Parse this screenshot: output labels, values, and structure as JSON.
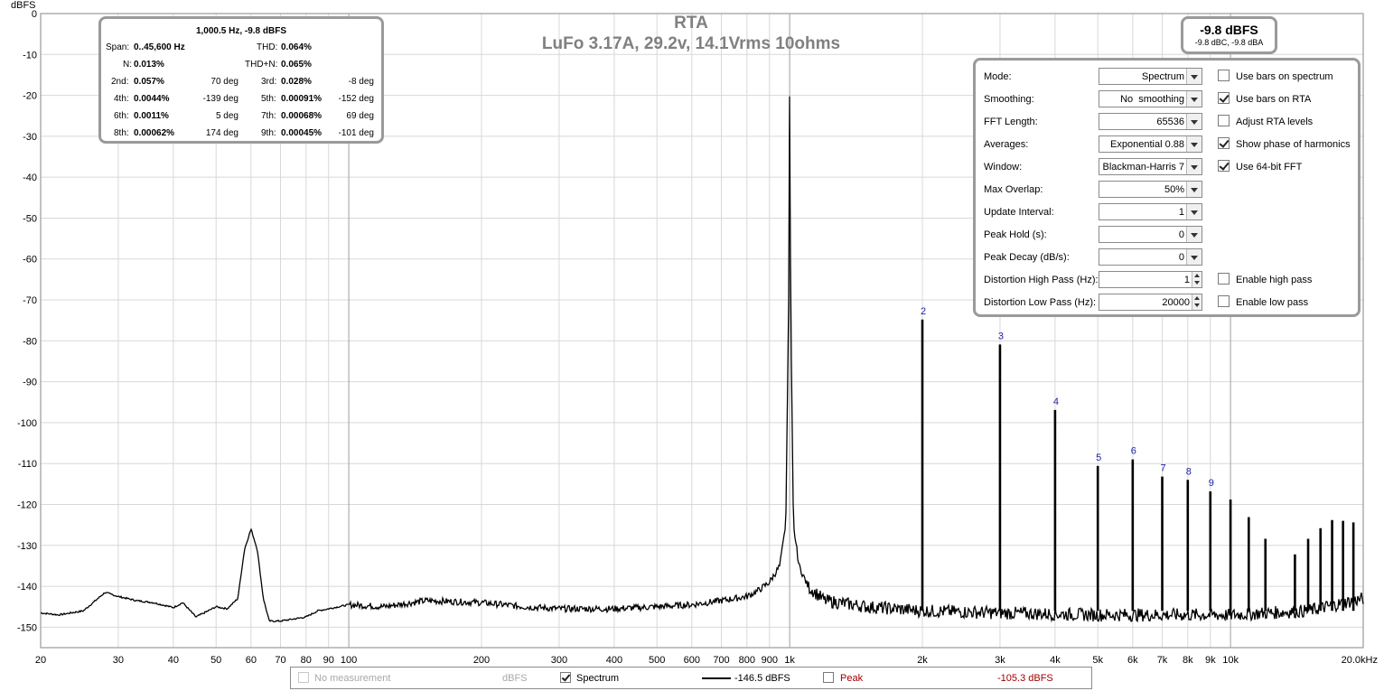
{
  "y_axis": {
    "unit": "dBFS",
    "ticks": [
      "0",
      "-10",
      "-20",
      "-30",
      "-40",
      "-50",
      "-60",
      "-70",
      "-80",
      "-90",
      "-100",
      "-110",
      "-120",
      "-130",
      "-140",
      "-150"
    ]
  },
  "x_axis": {
    "ticks": [
      "20",
      "30",
      "40",
      "50",
      "60",
      "70",
      "80",
      "90",
      "100",
      "200",
      "300",
      "400",
      "500",
      "600",
      "700",
      "800",
      "900",
      "1k",
      "2k",
      "3k",
      "4k",
      "5k",
      "6k",
      "7k",
      "8k",
      "9k",
      "10k",
      "20.0kHz"
    ]
  },
  "title": {
    "line1": "RTA",
    "line2": "LuFo 3.17A, 29.2v, 14.1Vrms 10ohms"
  },
  "stats": {
    "header": "1,000.5 Hz, -9.8 dBFS",
    "span_label": "Span:",
    "span_value": "0..45,600 Hz",
    "thd_label": "THD:",
    "thd_value": "0.064%",
    "n_label": "N:",
    "n_value": "0.013%",
    "thdn_label": "THD+N:",
    "thdn_value": "0.065%",
    "harmonics": [
      {
        "label": "2nd:",
        "value": "0.057%",
        "phase": "70 deg"
      },
      {
        "label": "3rd:",
        "value": "0.028%",
        "phase": "-8 deg"
      },
      {
        "label": "4th:",
        "value": "0.0044%",
        "phase": "-139 deg"
      },
      {
        "label": "5th:",
        "value": "0.00091%",
        "phase": "-152 deg"
      },
      {
        "label": "6th:",
        "value": "0.0011%",
        "phase": "5 deg"
      },
      {
        "label": "7th:",
        "value": "0.00068%",
        "phase": "69 deg"
      },
      {
        "label": "8th:",
        "value": "0.00062%",
        "phase": "174 deg"
      },
      {
        "label": "9th:",
        "value": "0.00045%",
        "phase": "-101 deg"
      }
    ]
  },
  "level": {
    "main": "-9.8 dBFS",
    "sub": "-9.8 dBC, -9.8 dBA"
  },
  "settings": {
    "rows": [
      {
        "label": "Mode:",
        "value": "Spectrum",
        "control": "dropdown"
      },
      {
        "label": "Smoothing:",
        "value": "No  smoothing",
        "control": "dropdown"
      },
      {
        "label": "FFT Length:",
        "value": "65536",
        "control": "dropdown"
      },
      {
        "label": "Averages:",
        "value": "Exponential 0.88",
        "control": "dropdown"
      },
      {
        "label": "Window:",
        "value": "Blackman-Harris 7",
        "control": "dropdown"
      },
      {
        "label": "Max Overlap:",
        "value": "50%",
        "control": "dropdown"
      },
      {
        "label": "Update Interval:",
        "value": "1",
        "control": "dropdown"
      },
      {
        "label": "Peak Hold (s):",
        "value": "0",
        "control": "dropdown"
      },
      {
        "label": "Peak Decay (dB/s):",
        "value": "0",
        "control": "dropdown"
      },
      {
        "label": "Distortion High Pass (Hz):",
        "value": "1",
        "control": "spinner"
      },
      {
        "label": "Distortion Low Pass (Hz):",
        "value": "20000",
        "control": "spinner"
      }
    ],
    "checkboxes": [
      {
        "label": "Use bars on spectrum",
        "checked": false
      },
      {
        "label": "Use bars on RTA",
        "checked": true
      },
      {
        "label": "Adjust RTA levels",
        "checked": false
      },
      {
        "label": "Show phase of harmonics",
        "checked": true
      },
      {
        "label": "Use 64-bit FFT",
        "checked": true
      }
    ],
    "checkboxes_lower": [
      {
        "label": "Enable high pass",
        "checked": false
      },
      {
        "label": "Enable low pass",
        "checked": false
      }
    ]
  },
  "legend": {
    "no_measurement": {
      "label": "No measurement",
      "unit": "dBFS",
      "checked": false
    },
    "spectrum": {
      "label": "Spectrum",
      "value": "-146.5 dBFS",
      "checked": true
    },
    "peak": {
      "label": "Peak",
      "value": "-105.3 dBFS",
      "checked": false,
      "color": "#a00000"
    }
  },
  "colors": {
    "harmonic_label": "#2222aa",
    "trace": "#000000",
    "grid": "#d8d8d8",
    "grid_major": "#a0a0a0"
  },
  "chart_data": {
    "type": "line",
    "xlabel": "",
    "ylabel": "dBFS",
    "xscale": "log",
    "xlim": [
      20,
      20000
    ],
    "ylim": [
      -155,
      0
    ],
    "grid": true,
    "series": [
      {
        "name": "Spectrum",
        "points": [
          [
            20,
            -146.5
          ],
          [
            22,
            -147
          ],
          [
            25,
            -146
          ],
          [
            28,
            -141.5
          ],
          [
            30,
            -142.5
          ],
          [
            33,
            -143.5
          ],
          [
            36,
            -144
          ],
          [
            40,
            -145.2
          ],
          [
            42,
            -144
          ],
          [
            45,
            -147.5
          ],
          [
            48,
            -146
          ],
          [
            50,
            -145
          ],
          [
            53,
            -145.5
          ],
          [
            56,
            -143
          ],
          [
            58,
            -131
          ],
          [
            60,
            -126
          ],
          [
            62,
            -131
          ],
          [
            64,
            -143
          ],
          [
            66,
            -148.5
          ],
          [
            70,
            -148.5
          ],
          [
            75,
            -148
          ],
          [
            80,
            -147.5
          ],
          [
            85,
            -146
          ],
          [
            90,
            -145.5
          ],
          [
            100,
            -144.5
          ],
          [
            120,
            -145
          ],
          [
            150,
            -143.5
          ],
          [
            200,
            -144
          ],
          [
            250,
            -145
          ],
          [
            300,
            -145.5
          ],
          [
            400,
            -145.5
          ],
          [
            500,
            -145
          ],
          [
            600,
            -144.5
          ],
          [
            700,
            -143.5
          ],
          [
            800,
            -142.5
          ],
          [
            850,
            -141
          ],
          [
            900,
            -139
          ],
          [
            950,
            -135
          ],
          [
            980,
            -125
          ],
          [
            995,
            -70
          ],
          [
            1000.5,
            -9.8
          ],
          [
            1005,
            -70
          ],
          [
            1020,
            -125
          ],
          [
            1050,
            -135
          ],
          [
            1100,
            -140
          ],
          [
            1200,
            -143.5
          ],
          [
            1500,
            -145
          ],
          [
            2000,
            -146
          ],
          [
            3000,
            -146.5
          ],
          [
            5000,
            -147
          ],
          [
            7000,
            -147
          ],
          [
            10000,
            -147
          ],
          [
            15000,
            -146
          ],
          [
            20000,
            -143
          ]
        ]
      }
    ],
    "harmonics": [
      {
        "n": 2,
        "freq": 2000,
        "db": -74.8
      },
      {
        "n": 3,
        "freq": 3000,
        "db": -80.9
      },
      {
        "n": 4,
        "freq": 4000,
        "db": -96.9
      },
      {
        "n": 5,
        "freq": 5000,
        "db": -110.6
      },
      {
        "n": 6,
        "freq": 6000,
        "db": -109.0
      },
      {
        "n": 7,
        "freq": 7000,
        "db": -113.2
      },
      {
        "n": 8,
        "freq": 8000,
        "db": -114.0
      },
      {
        "n": 9,
        "freq": 9000,
        "db": -116.8
      },
      {
        "freq": 10000,
        "db": -118.8
      },
      {
        "freq": 11000,
        "db": -123.1
      },
      {
        "freq": 12000,
        "db": -128.4
      },
      {
        "freq": 14000,
        "db": -132.2
      },
      {
        "freq": 15000,
        "db": -128.4
      },
      {
        "freq": 16000,
        "db": -125.8
      },
      {
        "freq": 17000,
        "db": -123.8
      },
      {
        "freq": 18000,
        "db": -124.0
      },
      {
        "freq": 19000,
        "db": -124.4
      }
    ]
  }
}
